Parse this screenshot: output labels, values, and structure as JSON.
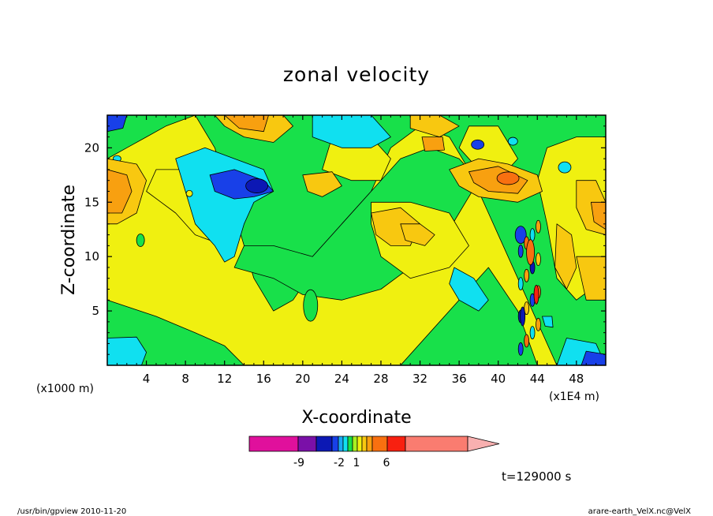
{
  "chart_data": {
    "type": "heatmap",
    "title": "zonal velocity",
    "xlabel": "X-coordinate",
    "ylabel": "Z-coordinate",
    "x_unit_note_left": "(x1000 m)",
    "x_unit_note_right": "(x1E4 m)",
    "xlim": [
      0,
      51
    ],
    "ylim": [
      0,
      23
    ],
    "x_ticks": [
      "4",
      "8",
      "12",
      "16",
      "20",
      "24",
      "28",
      "32",
      "36",
      "40",
      "44",
      "48"
    ],
    "y_ticks": [
      "5",
      "10",
      "15",
      "20"
    ],
    "grid": false,
    "time_label": "t=129000 s",
    "colorbar": {
      "tick_labels": [
        "-9",
        "-2",
        "1",
        "6"
      ],
      "colors": [
        "#e0109c",
        "#7a10a8",
        "#0c18b4",
        "#1840e8",
        "#1aa8f4",
        "#10e0f0",
        "#18e04a",
        "#a8f020",
        "#f0f010",
        "#f8c810",
        "#f8a010",
        "#f87010",
        "#f82010",
        "#fa7c70",
        "#f8b0b0"
      ]
    },
    "palette": {
      "yellow": "#f0f010",
      "green": "#18e04a",
      "light_orange": "#f8c810",
      "orange": "#f8a010",
      "dark_orange": "#f87010",
      "cyan": "#10e0f0",
      "blue": "#1840e8",
      "dark_blue": "#0c18b4"
    }
  },
  "footer": {
    "left": "/usr/bin/gpview   2010-11-20",
    "right": "arare-earth_VelX.nc@VelX"
  }
}
